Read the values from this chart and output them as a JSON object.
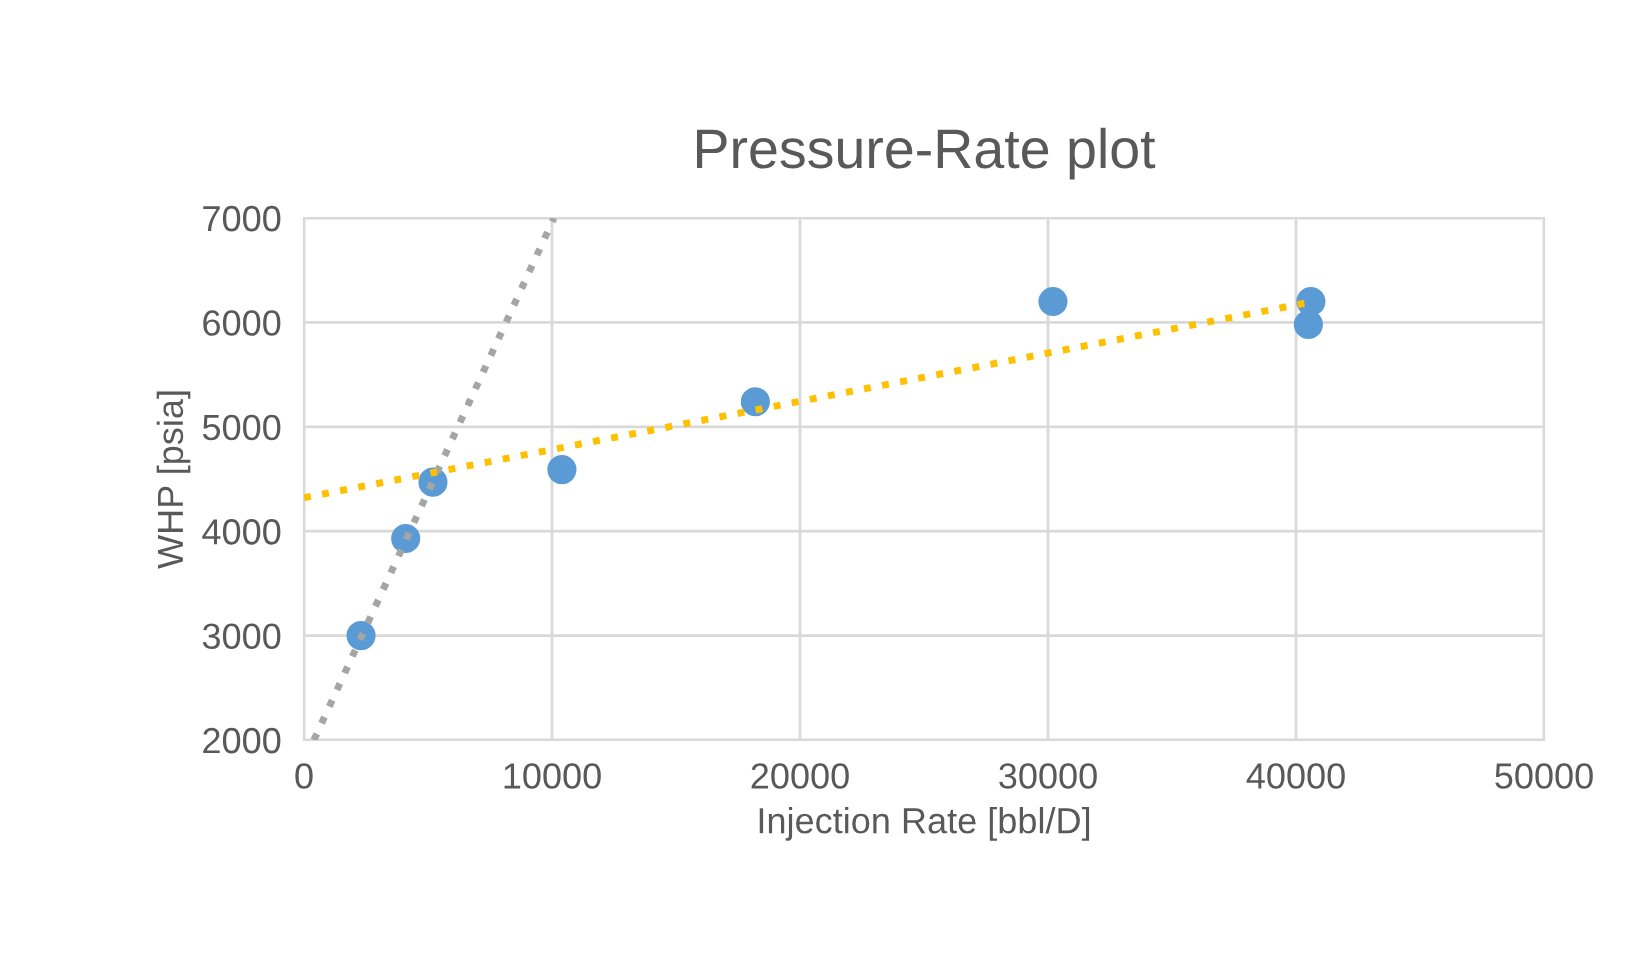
{
  "chart_data": {
    "type": "scatter",
    "title": "Pressure-Rate plot",
    "xlabel": "Injection Rate [bbl/D]",
    "ylabel": "WHP [psia]",
    "xlim": [
      0,
      50000
    ],
    "xticks": [
      0,
      10000,
      20000,
      30000,
      40000,
      50000
    ],
    "ylim": [
      2000,
      7000
    ],
    "yticks": [
      2000,
      3000,
      4000,
      5000,
      6000,
      7000
    ],
    "grid": true,
    "series": [
      {
        "color": "#5b9bd5",
        "marker": "circle",
        "x": [
          2300,
          4100,
          5200,
          10400,
          18200,
          30200,
          40600,
          40500
        ],
        "values": [
          3000,
          3930,
          4470,
          4590,
          5240,
          6200,
          6200,
          5980
        ]
      },
      {
        "type": "line",
        "color": "#a5a5a5",
        "line_style": "dotted",
        "marker": "none",
        "x": [
          400,
          10080
        ],
        "values": [
          2000,
          7000
        ]
      },
      {
        "type": "line",
        "color": "#ffc000",
        "line_style": "dotted",
        "marker": "none",
        "x": [
          0,
          40700
        ],
        "values": [
          4320,
          6200
        ]
      }
    ]
  }
}
